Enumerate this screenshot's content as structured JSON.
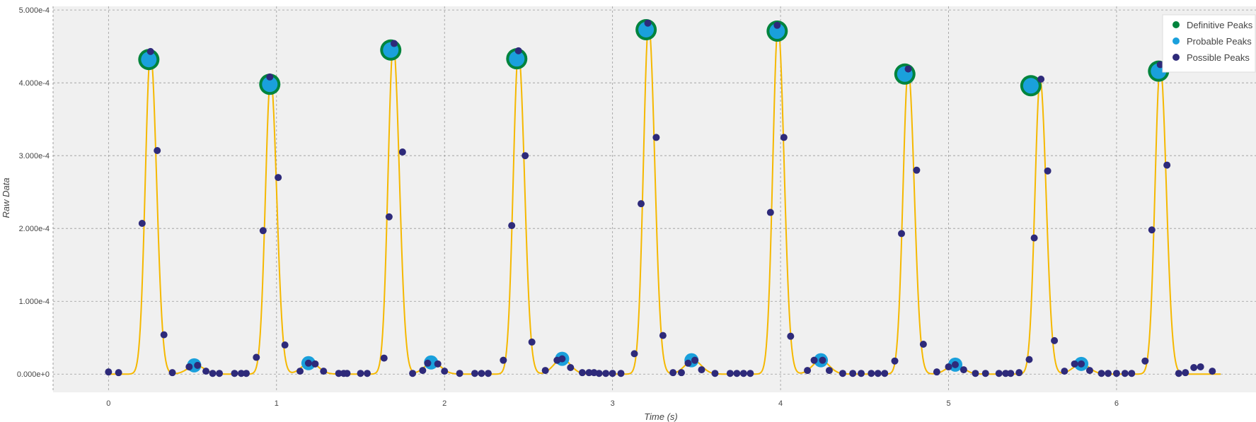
{
  "chart_data": {
    "type": "line",
    "xlabel": "Time (s)",
    "ylabel": "Raw Data",
    "xlim": [
      -0.33,
      6.83
    ],
    "ylim": [
      -2.5e-05,
      0.000505
    ],
    "x_ticks": [
      0,
      1,
      2,
      3,
      4,
      5,
      6
    ],
    "x_tick_labels": [
      "0",
      "1",
      "2",
      "3",
      "4",
      "5",
      "6"
    ],
    "y_ticks": [
      0,
      0.0001,
      0.0002,
      0.0003,
      0.0004,
      0.0005
    ],
    "y_tick_labels": [
      "0.000e+0",
      "1.000e-4",
      "2.000e-4",
      "3.000e-4",
      "4.000e-4",
      "5.000e-4"
    ],
    "grid": true,
    "legend_position": "top-right",
    "colors": {
      "signal": "#f5b800",
      "definitive": "#00843d",
      "probable": "#1aa0dc",
      "possible": "#2e2a7a",
      "plot_bg": "#f0f0f0",
      "grid": "#9a9a9a"
    },
    "series": [
      {
        "name": "Definitive Peaks",
        "points": [
          [
            0.24,
            0.000432
          ],
          [
            0.96,
            0.000398
          ],
          [
            1.68,
            0.000445
          ],
          [
            2.43,
            0.000433
          ],
          [
            3.2,
            0.000473
          ],
          [
            3.98,
            0.000471
          ],
          [
            4.74,
            0.000412
          ],
          [
            5.49,
            0.000396
          ],
          [
            6.25,
            0.000416
          ]
        ]
      },
      {
        "name": "Probable Peaks",
        "points": [
          [
            0.24,
            0.000432
          ],
          [
            0.96,
            0.000398
          ],
          [
            1.68,
            0.000445
          ],
          [
            2.43,
            0.000433
          ],
          [
            3.2,
            0.000473
          ],
          [
            3.98,
            0.000471
          ],
          [
            4.74,
            0.000412
          ],
          [
            5.49,
            0.000396
          ],
          [
            6.25,
            0.000416
          ],
          [
            0.51,
            1.2e-05
          ],
          [
            1.19,
            1.5e-05
          ],
          [
            1.92,
            1.6e-05
          ],
          [
            2.7,
            2.1e-05
          ],
          [
            3.47,
            1.9e-05
          ],
          [
            4.24,
            1.9e-05
          ],
          [
            5.04,
            1.3e-05
          ],
          [
            5.79,
            1.4e-05
          ]
        ]
      },
      {
        "name": "Possible Peaks",
        "points": [
          [
            0.0,
            3e-06
          ],
          [
            0.06,
            2e-06
          ],
          [
            0.2,
            0.000207
          ],
          [
            0.25,
            0.000443
          ],
          [
            0.29,
            0.000307
          ],
          [
            0.33,
            5.4e-05
          ],
          [
            0.38,
            2e-06
          ],
          [
            0.48,
            1e-05
          ],
          [
            0.53,
            1.2e-05
          ],
          [
            0.58,
            4e-06
          ],
          [
            0.62,
            1e-06
          ],
          [
            0.66,
            1e-06
          ],
          [
            0.75,
            1e-06
          ],
          [
            0.79,
            1e-06
          ],
          [
            0.82,
            1e-06
          ],
          [
            0.88,
            2.3e-05
          ],
          [
            0.92,
            0.000197
          ],
          [
            0.96,
            0.000408
          ],
          [
            1.01,
            0.00027
          ],
          [
            1.05,
            4e-05
          ],
          [
            1.14,
            4e-06
          ],
          [
            1.19,
            1.5e-05
          ],
          [
            1.23,
            1.4e-05
          ],
          [
            1.28,
            4e-06
          ],
          [
            1.37,
            1e-06
          ],
          [
            1.4,
            1e-06
          ],
          [
            1.42,
            1e-06
          ],
          [
            1.5,
            1e-06
          ],
          [
            1.54,
            1e-06
          ],
          [
            1.64,
            2.2e-05
          ],
          [
            1.67,
            0.000216
          ],
          [
            1.7,
            0.000454
          ],
          [
            1.75,
            0.000305
          ],
          [
            1.81,
            1e-06
          ],
          [
            1.87,
            5e-06
          ],
          [
            1.9,
            1.5e-05
          ],
          [
            1.96,
            1.4e-05
          ],
          [
            2.0,
            4e-06
          ],
          [
            2.09,
            1e-06
          ],
          [
            2.18,
            1e-06
          ],
          [
            2.22,
            1e-06
          ],
          [
            2.26,
            1e-06
          ],
          [
            2.35,
            1.9e-05
          ],
          [
            2.4,
            0.000204
          ],
          [
            2.44,
            0.000444
          ],
          [
            2.48,
            0.0003
          ],
          [
            2.52,
            4.4e-05
          ],
          [
            2.6,
            5e-06
          ],
          [
            2.67,
            1.9e-05
          ],
          [
            2.7,
            2.1e-05
          ],
          [
            2.75,
            9e-06
          ],
          [
            2.82,
            2e-06
          ],
          [
            2.86,
            2e-06
          ],
          [
            2.89,
            2e-06
          ],
          [
            2.92,
            1e-06
          ],
          [
            2.96,
            1e-06
          ],
          [
            3.0,
            1e-06
          ],
          [
            3.05,
            1e-06
          ],
          [
            3.13,
            2.8e-05
          ],
          [
            3.17,
            0.000234
          ],
          [
            3.21,
            0.000482
          ],
          [
            3.26,
            0.000325
          ],
          [
            3.3,
            5.3e-05
          ],
          [
            3.36,
            2e-06
          ],
          [
            3.41,
            2e-06
          ],
          [
            3.45,
            1.5e-05
          ],
          [
            3.49,
            1.9e-05
          ],
          [
            3.53,
            6e-06
          ],
          [
            3.61,
            1e-06
          ],
          [
            3.7,
            1e-06
          ],
          [
            3.74,
            1e-06
          ],
          [
            3.78,
            1e-06
          ],
          [
            3.82,
            1e-06
          ],
          [
            3.94,
            0.000222
          ],
          [
            3.98,
            0.000479
          ],
          [
            4.02,
            0.000325
          ],
          [
            4.06,
            5.2e-05
          ],
          [
            4.16,
            5e-06
          ],
          [
            4.2,
            1.9e-05
          ],
          [
            4.25,
            1.9e-05
          ],
          [
            4.29,
            5e-06
          ],
          [
            4.37,
            1e-06
          ],
          [
            4.43,
            1e-06
          ],
          [
            4.48,
            1e-06
          ],
          [
            4.54,
            1e-06
          ],
          [
            4.58,
            1e-06
          ],
          [
            4.62,
            1e-06
          ],
          [
            4.68,
            1.8e-05
          ],
          [
            4.72,
            0.000193
          ],
          [
            4.76,
            0.000419
          ],
          [
            4.81,
            0.00028
          ],
          [
            4.85,
            4.1e-05
          ],
          [
            4.93,
            3e-06
          ],
          [
            5.0,
            1e-05
          ],
          [
            5.04,
            1.3e-05
          ],
          [
            5.09,
            6e-06
          ],
          [
            5.16,
            1e-06
          ],
          [
            5.22,
            1e-06
          ],
          [
            5.3,
            1e-06
          ],
          [
            5.34,
            1e-06
          ],
          [
            5.37,
            1e-06
          ],
          [
            5.42,
            2e-06
          ],
          [
            5.48,
            2e-05
          ],
          [
            5.51,
            0.000187
          ],
          [
            5.55,
            0.000405
          ],
          [
            5.59,
            0.000279
          ],
          [
            5.63,
            4.6e-05
          ],
          [
            5.69,
            4e-06
          ],
          [
            5.75,
            1.4e-05
          ],
          [
            5.79,
            1.4e-05
          ],
          [
            5.84,
            5e-06
          ],
          [
            5.91,
            1e-06
          ],
          [
            5.95,
            1e-06
          ],
          [
            6.0,
            1e-06
          ],
          [
            6.05,
            1e-06
          ],
          [
            6.09,
            1e-06
          ],
          [
            6.17,
            1.8e-05
          ],
          [
            6.21,
            0.000198
          ],
          [
            6.26,
            0.000425
          ],
          [
            6.3,
            0.000287
          ],
          [
            6.37,
            1e-06
          ],
          [
            6.41,
            2e-06
          ],
          [
            6.46,
            9e-06
          ],
          [
            6.5,
            1e-05
          ],
          [
            6.57,
            4e-06
          ]
        ]
      }
    ],
    "signal_peaks": [
      0.25,
      0.965,
      1.695,
      2.44,
      3.215,
      3.985,
      4.76,
      5.545,
      6.26
    ],
    "signal_heights": [
      0.000443,
      0.000408,
      0.000454,
      0.000444,
      0.000482,
      0.000479,
      0.000419,
      0.000405,
      0.000425
    ],
    "signal_bumps": [
      0.52,
      1.2,
      1.93,
      2.7,
      3.48,
      4.24,
      5.04,
      5.79
    ],
    "signal_bump_heights": [
      1.2e-05,
      1.6e-05,
      1.6e-05,
      2.1e-05,
      1.9e-05,
      1.9e-05,
      1.3e-05,
      1.4e-05
    ],
    "signal_xrange": [
      0.0,
      6.62
    ]
  }
}
